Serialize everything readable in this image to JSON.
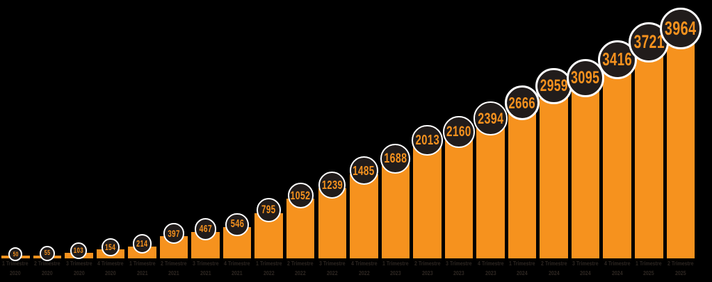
{
  "chart_data": {
    "type": "bar",
    "title": "",
    "xlabel": "",
    "ylabel": "",
    "ylim": [
      0,
      3964
    ],
    "grid": false,
    "legend": null,
    "categories": [
      "1 Trimestre 2020",
      "2 Trimestre 2020",
      "3 Trimestre 2020",
      "4 Trimestre 2020",
      "1 Trimestre 2021",
      "2 Trimestre 2021",
      "3 Trimestre 2021",
      "4 Trimestre 2021",
      "1 Trimestre 2022",
      "2 Trimestre 2022",
      "3 Trimestre 2022",
      "4 Trimestre 2022",
      "1 Trimestre 2023",
      "2 Trimestre 2023",
      "3 Trimestre 2023",
      "4 Trimestre 2023",
      "1 Trimestre 2024",
      "2 Trimestre 2024",
      "3 Trimestre 2024",
      "4 Trimestre 2024",
      "1 Trimestre 2025",
      "2 Trimestre 2025"
    ],
    "values": [
      50,
      55,
      103,
      154,
      214,
      397,
      467,
      546,
      795,
      1052,
      1239,
      1485,
      1688,
      2013,
      2160,
      2394,
      2666,
      2959,
      3095,
      3416,
      3721,
      3964
    ]
  },
  "colors": {
    "background": "#000000",
    "bar": "#F6921E",
    "badge_fill": "#211C1B",
    "badge_ring": "#FFFFFF",
    "badge_number": "#F6921E",
    "axis_label": "#2E2722"
  }
}
